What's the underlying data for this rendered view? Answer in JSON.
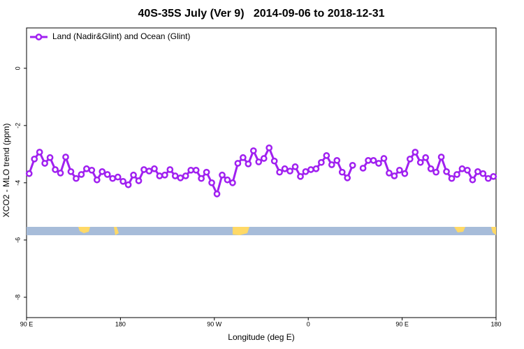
{
  "chart_data": {
    "type": "line",
    "title": "40S-35S July (Ver 9)   2014-09-06 to 2018-12-31",
    "x_label": "Longitude (deg E)",
    "y_label": "XCO2 - MLO trend (ppm)",
    "x": [
      92.5,
      97.5,
      102.5,
      107.5,
      112.5,
      117.5,
      122.5,
      127.5,
      132.5,
      137.5,
      142.5,
      147.5,
      152.5,
      157.5,
      162.5,
      167.5,
      172.5,
      177.5,
      182.5,
      187.5,
      192.5,
      197.5,
      202.5,
      207.5,
      212.5,
      217.5,
      222.5,
      227.5,
      232.5,
      237.5,
      242.5,
      247.5,
      252.5,
      257.5,
      262.5,
      267.5,
      272.5,
      277.5,
      282.5,
      287.5,
      292.5,
      297.5,
      302.5,
      307.5,
      312.5,
      317.5,
      322.5,
      327.5,
      332.5,
      337.5,
      342.5,
      347.5,
      352.5,
      357.5,
      362.5,
      367.5,
      372.5,
      377.5,
      382.5,
      387.5,
      392.5,
      397.5,
      402.5,
      407.5,
      412.5,
      417.5,
      422.5,
      427.5,
      432.5,
      437.5,
      442.5,
      447.5,
      452.5,
      457.5,
      462.5,
      467.5,
      472.5,
      477.5,
      482.5,
      487.5,
      492.5,
      497.5,
      502.5,
      507.5,
      512.5,
      517.5,
      522.5,
      527.5,
      532.5,
      537.5
    ],
    "series": [
      {
        "name": "Land (Nadir&Glint) and Ocean (Glint)",
        "color": "#a020f0",
        "values": [
          -3.68,
          -3.17,
          -2.93,
          -3.32,
          -3.12,
          -3.54,
          -3.66,
          -3.1,
          -3.61,
          -3.85,
          -3.71,
          -3.51,
          -3.56,
          -3.9,
          -3.61,
          -3.71,
          -3.85,
          -3.8,
          -3.95,
          -4.07,
          -3.73,
          -3.93,
          -3.54,
          -3.59,
          -3.51,
          -3.76,
          -3.73,
          -3.54,
          -3.76,
          -3.83,
          -3.76,
          -3.56,
          -3.56,
          -3.85,
          -3.63,
          -4.0,
          -4.39,
          -3.73,
          -3.9,
          -4.0,
          -3.32,
          -3.12,
          -3.34,
          -2.88,
          -3.27,
          -3.15,
          -2.78,
          -3.24,
          -3.63,
          -3.51,
          -3.59,
          -3.44,
          -3.78,
          -3.61,
          -3.54,
          -3.51,
          -3.29,
          -3.05,
          -3.37,
          -3.22,
          -3.63,
          -3.83,
          -3.39,
          null,
          -3.49,
          -3.22,
          -3.22,
          -3.32,
          -3.15,
          -3.66,
          -3.76,
          -3.56,
          -3.68,
          -3.17,
          -2.93,
          -3.29,
          -3.12,
          -3.51,
          -3.63,
          -3.1,
          -3.61,
          -3.85,
          -3.71,
          -3.51,
          -3.56,
          -3.9,
          -3.61,
          -3.68,
          -3.85,
          -3.78
        ]
      }
    ],
    "xlim": [
      90,
      540
    ],
    "xticks": [
      {
        "value": 90,
        "label": "90 E"
      },
      180,
      {
        "value": 270,
        "label": "90 W"
      },
      {
        "value": 360,
        "label": "0"
      },
      {
        "value": 450,
        "label": "90 E"
      },
      {
        "value": 540,
        "label": "180"
      }
    ],
    "ylim": [
      -8.71,
      1.41
    ],
    "yticks": [
      0,
      -2,
      -4,
      -6,
      -8
    ],
    "legend": "top-left"
  }
}
